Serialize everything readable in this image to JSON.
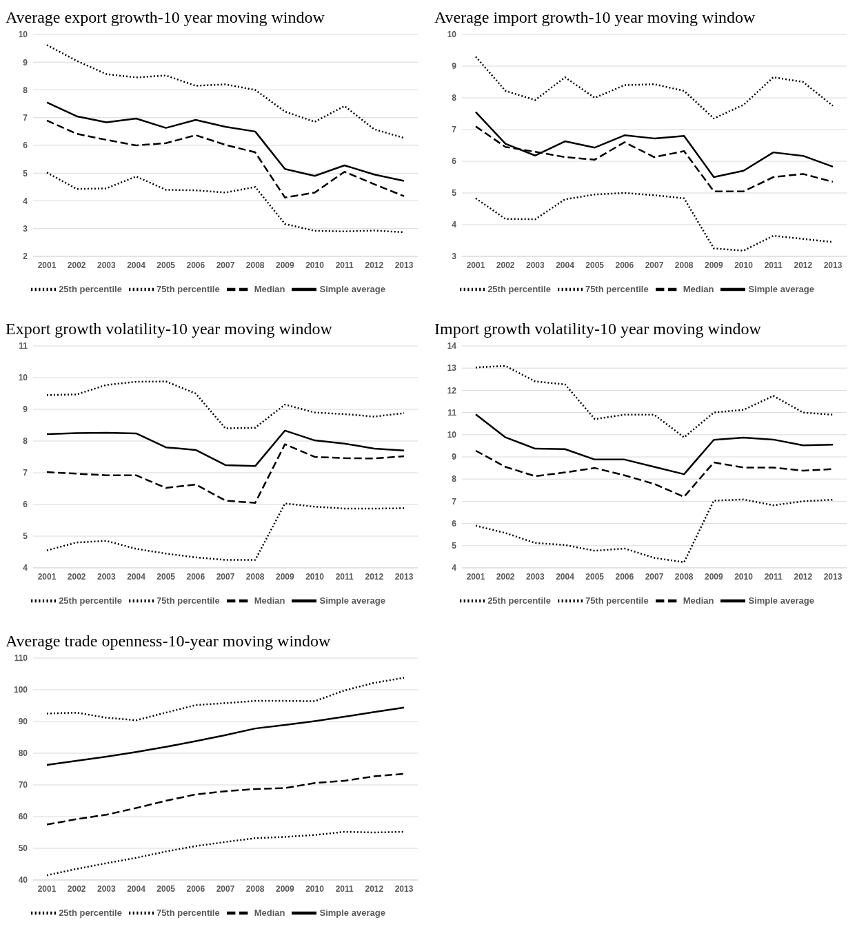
{
  "chart_data": [
    {
      "type": "line",
      "title": "Average export growth-10 year moving window",
      "categories": [
        "2001",
        "2002",
        "2003",
        "2004",
        "2005",
        "2006",
        "2007",
        "2008",
        "2009",
        "2010",
        "2011",
        "2012",
        "2013"
      ],
      "ylim": [
        2,
        10
      ],
      "yticks": [
        2,
        3,
        4,
        5,
        6,
        7,
        8,
        9,
        10
      ],
      "grid": "y",
      "legend": "bottom",
      "marker": "none",
      "series": [
        {
          "name": "Simple average",
          "color": "#000000",
          "line_style": "solid",
          "values": [
            7.55,
            7.05,
            6.83,
            6.97,
            6.63,
            6.92,
            6.67,
            6.5,
            5.15,
            4.9,
            5.28,
            4.95,
            4.72
          ]
        },
        {
          "name": "Median",
          "color": "#000000",
          "line_style": "dashed",
          "values": [
            6.9,
            6.42,
            6.2,
            6.0,
            6.08,
            6.37,
            6.02,
            5.75,
            4.12,
            4.3,
            5.05,
            4.6,
            4.17
          ]
        },
        {
          "name": "25th percentile",
          "color": "#000000",
          "line_style": "dotted",
          "values": [
            5.02,
            4.43,
            4.45,
            4.88,
            4.4,
            4.38,
            4.3,
            4.5,
            3.17,
            2.92,
            2.9,
            2.93,
            2.87
          ]
        },
        {
          "name": "75th percentile",
          "color": "#000000",
          "line_style": "dotted",
          "values": [
            9.62,
            9.05,
            8.57,
            8.45,
            8.52,
            8.15,
            8.2,
            8.0,
            7.22,
            6.85,
            7.42,
            6.58,
            6.27
          ]
        }
      ]
    },
    {
      "type": "line",
      "title": "Average import growth-10 year moving window",
      "categories": [
        "2001",
        "2002",
        "2003",
        "2004",
        "2005",
        "2006",
        "2007",
        "2008",
        "2009",
        "2010",
        "2011",
        "2012",
        "2013"
      ],
      "ylim": [
        3,
        10
      ],
      "yticks": [
        3,
        4,
        5,
        6,
        7,
        8,
        9,
        10
      ],
      "grid": "y",
      "legend": "bottom",
      "marker": "none",
      "series": [
        {
          "name": "Simple average",
          "color": "#000000",
          "line_style": "solid",
          "values": [
            7.55,
            6.55,
            6.18,
            6.63,
            6.43,
            6.82,
            6.72,
            6.8,
            5.5,
            5.7,
            6.28,
            6.17,
            5.83
          ]
        },
        {
          "name": "Median",
          "color": "#000000",
          "line_style": "dashed",
          "values": [
            7.1,
            6.45,
            6.3,
            6.13,
            6.05,
            6.6,
            6.13,
            6.32,
            5.05,
            5.05,
            5.5,
            5.6,
            5.35
          ]
        },
        {
          "name": "25th percentile",
          "color": "#000000",
          "line_style": "dotted",
          "values": [
            4.83,
            4.18,
            4.17,
            4.8,
            4.95,
            5.0,
            4.93,
            4.83,
            3.25,
            3.18,
            3.65,
            3.55,
            3.45
          ]
        },
        {
          "name": "75th percentile",
          "color": "#000000",
          "line_style": "dotted",
          "values": [
            9.3,
            8.22,
            7.93,
            8.65,
            8.0,
            8.4,
            8.43,
            8.22,
            7.35,
            7.78,
            8.65,
            8.5,
            7.75
          ]
        }
      ]
    },
    {
      "type": "line",
      "title": "Export growth volatility-10 year moving window",
      "categories": [
        "2001",
        "2002",
        "2003",
        "2004",
        "2005",
        "2006",
        "2007",
        "2008",
        "2009",
        "2010",
        "2011",
        "2012",
        "2013"
      ],
      "ylim": [
        4,
        11
      ],
      "yticks": [
        4,
        5,
        6,
        7,
        8,
        9,
        10,
        11
      ],
      "grid": "y",
      "legend": "bottom",
      "marker": "none",
      "series": [
        {
          "name": "Simple average",
          "color": "#000000",
          "line_style": "solid",
          "values": [
            8.22,
            8.25,
            8.26,
            8.24,
            7.8,
            7.72,
            7.24,
            7.21,
            8.33,
            8.02,
            7.92,
            7.76,
            7.7
          ]
        },
        {
          "name": "Median",
          "color": "#000000",
          "line_style": "dashed",
          "values": [
            7.02,
            6.97,
            6.92,
            6.92,
            6.52,
            6.63,
            6.12,
            6.05,
            7.9,
            7.5,
            7.46,
            7.45,
            7.52
          ]
        },
        {
          "name": "25th percentile",
          "color": "#000000",
          "line_style": "dotted",
          "values": [
            4.55,
            4.8,
            4.85,
            4.6,
            4.45,
            4.33,
            4.25,
            4.25,
            6.03,
            5.93,
            5.87,
            5.87,
            5.88
          ]
        },
        {
          "name": "75th percentile",
          "color": "#000000",
          "line_style": "dotted",
          "values": [
            9.45,
            9.47,
            9.77,
            9.87,
            9.88,
            9.5,
            8.4,
            8.42,
            9.15,
            8.9,
            8.85,
            8.77,
            8.88
          ]
        }
      ]
    },
    {
      "type": "line",
      "title": "Import growth volatility-10 year moving window",
      "categories": [
        "2001",
        "2002",
        "2003",
        "2004",
        "2005",
        "2006",
        "2007",
        "2008",
        "2009",
        "2010",
        "2011",
        "2012",
        "2013"
      ],
      "ylim": [
        4,
        14
      ],
      "yticks": [
        4,
        5,
        6,
        7,
        8,
        9,
        10,
        11,
        12,
        13,
        14
      ],
      "grid": "y",
      "legend": "bottom",
      "marker": "none",
      "series": [
        {
          "name": "Simple average",
          "color": "#000000",
          "line_style": "solid",
          "values": [
            10.92,
            9.88,
            9.37,
            9.35,
            8.88,
            8.88,
            8.55,
            8.22,
            9.77,
            9.87,
            9.78,
            9.52,
            9.55
          ]
        },
        {
          "name": "Median",
          "color": "#000000",
          "line_style": "dashed",
          "values": [
            9.28,
            8.55,
            8.13,
            8.3,
            8.5,
            8.17,
            7.78,
            7.2,
            8.75,
            8.52,
            8.52,
            8.38,
            8.45
          ]
        },
        {
          "name": "25th percentile",
          "color": "#000000",
          "line_style": "dotted",
          "values": [
            5.9,
            5.57,
            5.12,
            5.03,
            4.77,
            4.87,
            4.45,
            4.25,
            7.03,
            7.08,
            6.82,
            7.0,
            7.07
          ]
        },
        {
          "name": "75th percentile",
          "color": "#000000",
          "line_style": "dotted",
          "values": [
            13.03,
            13.1,
            12.4,
            12.27,
            10.7,
            10.9,
            10.9,
            9.88,
            11.0,
            11.12,
            11.75,
            11.0,
            10.9
          ]
        }
      ]
    },
    {
      "type": "line",
      "title": "Average trade openness-10-year moving window",
      "categories": [
        "2001",
        "2002",
        "2003",
        "2004",
        "2005",
        "2006",
        "2007",
        "2008",
        "2009",
        "2010",
        "2011",
        "2012",
        "2013"
      ],
      "ylim": [
        40,
        110
      ],
      "yticks": [
        40,
        50,
        60,
        70,
        80,
        90,
        100,
        110
      ],
      "grid": "y",
      "legend": "bottom",
      "marker": "none",
      "series": [
        {
          "name": "Simple average",
          "color": "#000000",
          "line_style": "solid",
          "values": [
            76.3,
            77.6,
            78.9,
            80.4,
            82.0,
            83.8,
            85.7,
            87.8,
            88.9,
            90.1,
            91.5,
            93.0,
            94.4
          ]
        },
        {
          "name": "Median",
          "color": "#000000",
          "line_style": "dashed",
          "values": [
            57.5,
            59.2,
            60.6,
            62.7,
            65.0,
            67.0,
            68.0,
            68.7,
            69.0,
            70.6,
            71.3,
            72.7,
            73.5
          ]
        },
        {
          "name": "25th percentile",
          "color": "#000000",
          "line_style": "dotted",
          "values": [
            41.5,
            43.5,
            45.3,
            47.0,
            49.0,
            50.7,
            52.0,
            53.2,
            53.6,
            54.2,
            55.2,
            55.0,
            55.2
          ]
        },
        {
          "name": "75th percentile",
          "color": "#000000",
          "line_style": "dotted",
          "values": [
            92.5,
            92.8,
            91.2,
            90.4,
            92.8,
            95.2,
            95.8,
            96.5,
            96.5,
            96.4,
            99.8,
            102.2,
            103.8
          ]
        }
      ]
    }
  ]
}
